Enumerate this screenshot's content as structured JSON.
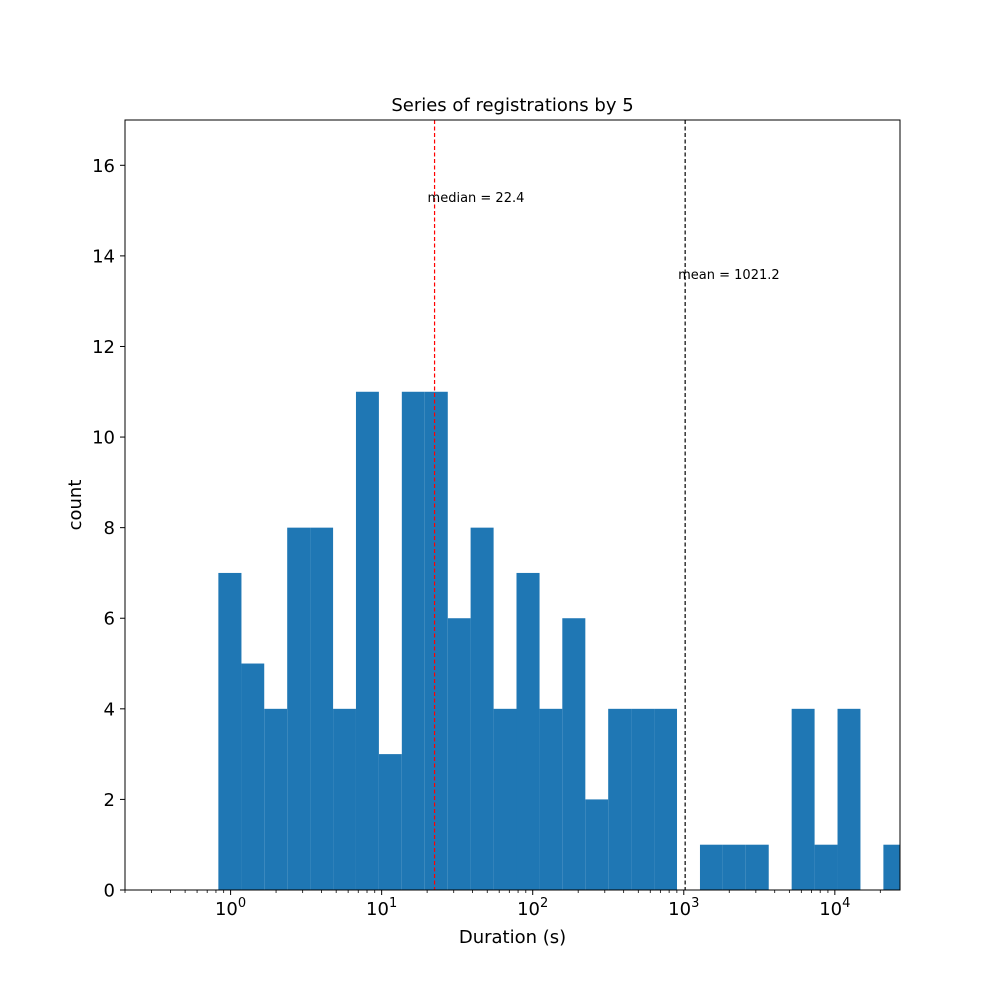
{
  "chart_data": {
    "type": "bar",
    "title": "Series of registrations by  5",
    "xlabel": "Duration (s)",
    "ylabel": "count",
    "xscale": "log",
    "xlim": [
      0.2,
      27000
    ],
    "ylim": [
      0,
      17
    ],
    "grid": false,
    "bar_color": "#1f77b4",
    "yticks": [
      "0",
      "2",
      "4",
      "6",
      "8",
      "10",
      "12",
      "14",
      "16"
    ],
    "xticks": [
      {
        "value": 1,
        "base": "10",
        "exp": "0"
      },
      {
        "value": 10,
        "base": "10",
        "exp": "1"
      },
      {
        "value": 100,
        "base": "10",
        "exp": "2"
      },
      {
        "value": 1000,
        "base": "10",
        "exp": "3"
      },
      {
        "value": 10000,
        "base": "10",
        "exp": "4"
      }
    ],
    "bins": [
      {
        "x0": 0.83,
        "x1": 1.18,
        "count": 7
      },
      {
        "x0": 1.18,
        "x1": 1.67,
        "count": 5
      },
      {
        "x0": 1.67,
        "x1": 2.37,
        "count": 4
      },
      {
        "x0": 2.37,
        "x1": 3.36,
        "count": 8
      },
      {
        "x0": 3.36,
        "x1": 4.77,
        "count": 8
      },
      {
        "x0": 4.77,
        "x1": 6.76,
        "count": 4
      },
      {
        "x0": 6.76,
        "x1": 9.59,
        "count": 11
      },
      {
        "x0": 9.59,
        "x1": 13.6,
        "count": 3
      },
      {
        "x0": 13.6,
        "x1": 19.3,
        "count": 11
      },
      {
        "x0": 19.3,
        "x1": 27.4,
        "count": 11
      },
      {
        "x0": 27.4,
        "x1": 38.8,
        "count": 6
      },
      {
        "x0": 38.8,
        "x1": 55.1,
        "count": 8
      },
      {
        "x0": 55.1,
        "x1": 78.1,
        "count": 4
      },
      {
        "x0": 78.1,
        "x1": 111,
        "count": 7
      },
      {
        "x0": 111,
        "x1": 157,
        "count": 4
      },
      {
        "x0": 157,
        "x1": 223,
        "count": 6
      },
      {
        "x0": 223,
        "x1": 316,
        "count": 2
      },
      {
        "x0": 316,
        "x1": 448,
        "count": 4
      },
      {
        "x0": 448,
        "x1": 636,
        "count": 4
      },
      {
        "x0": 636,
        "x1": 902,
        "count": 4
      },
      {
        "x0": 902,
        "x1": 1280,
        "count": 0
      },
      {
        "x0": 1280,
        "x1": 1815,
        "count": 1
      },
      {
        "x0": 1815,
        "x1": 2574,
        "count": 1
      },
      {
        "x0": 2574,
        "x1": 3651,
        "count": 1
      },
      {
        "x0": 3651,
        "x1": 5178,
        "count": 0
      },
      {
        "x0": 5178,
        "x1": 7345,
        "count": 4
      },
      {
        "x0": 7345,
        "x1": 10418,
        "count": 1
      },
      {
        "x0": 10418,
        "x1": 14777,
        "count": 4
      },
      {
        "x0": 14777,
        "x1": 20960,
        "count": 0
      },
      {
        "x0": 20960,
        "x1": 29730,
        "count": 1
      }
    ],
    "annotations": [
      {
        "name": "median",
        "value": 22.4,
        "label": "median = 22.4",
        "color": "#ff0000",
        "label_y": 15.3
      },
      {
        "name": "mean",
        "value": 1021.2,
        "label": "mean = 1021.2",
        "color": "#000000",
        "label_y": 13.6
      }
    ]
  }
}
